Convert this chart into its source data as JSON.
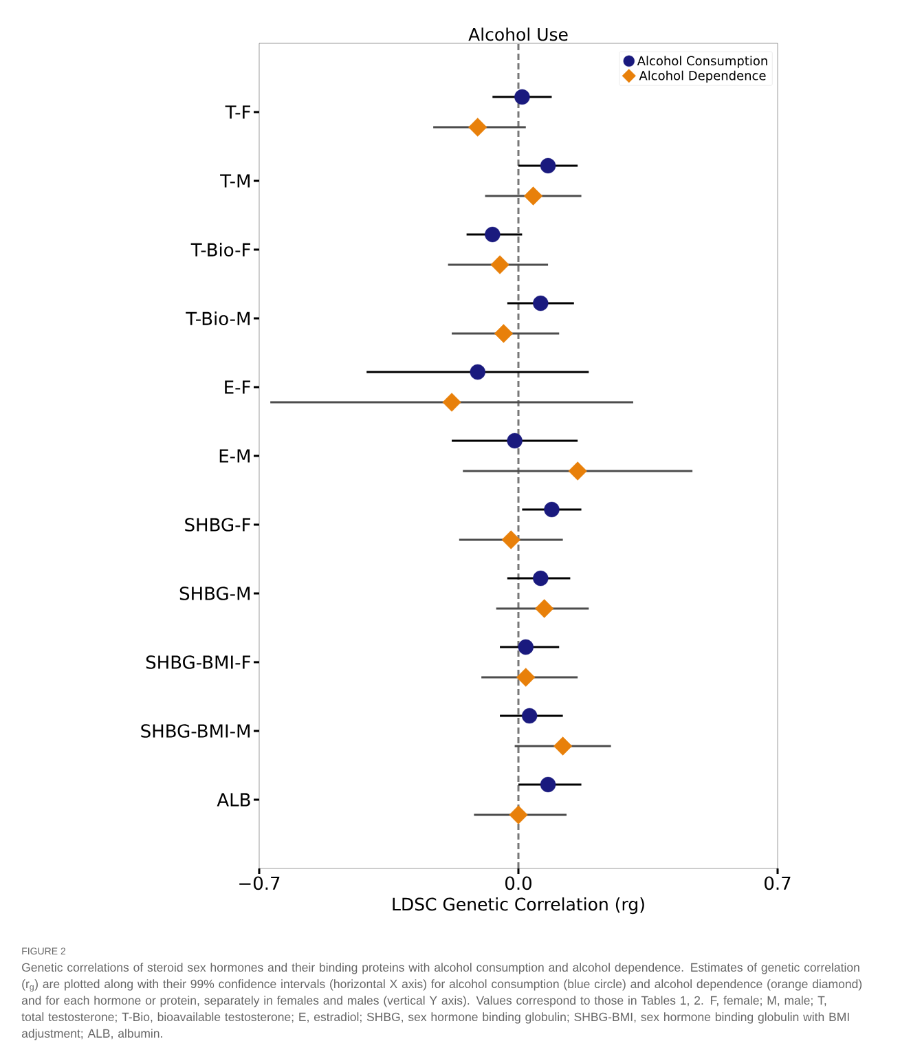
{
  "chart_data": {
    "type": "scatter",
    "title": "Alcohol Use",
    "xlabel": "LDSC Genetic Correlation (rg)",
    "categories": [
      "T-F",
      "T-M",
      "T-Bio-F",
      "T-Bio-M",
      "E-F",
      "E-M",
      "SHBG-F",
      "SHBG-M",
      "SHBG-BMI-F",
      "SHBG-BMI-M",
      "ALB"
    ],
    "orientation": "horizontal",
    "xlim": [
      -0.7,
      0.7
    ],
    "xticks": [
      {
        "value": -0.7,
        "label": "−0.7"
      },
      {
        "value": 0.0,
        "label": "0.0"
      },
      {
        "value": 0.7,
        "label": "0.7"
      }
    ],
    "series": [
      {
        "name": "Alcohol Consumption",
        "color": "#1a1a7e",
        "marker": "circle",
        "values": [
          0.01,
          0.08,
          -0.07,
          0.06,
          -0.11,
          -0.01,
          0.09,
          0.06,
          0.02,
          0.03,
          0.08
        ],
        "errors": [
          [
            -0.07,
            0.09
          ],
          [
            0.0,
            0.16
          ],
          [
            -0.14,
            0.01
          ],
          [
            -0.03,
            0.15
          ],
          [
            -0.41,
            0.19
          ],
          [
            -0.18,
            0.16
          ],
          [
            0.01,
            0.17
          ],
          [
            -0.03,
            0.14
          ],
          [
            -0.05,
            0.11
          ],
          [
            -0.05,
            0.12
          ],
          [
            0.0,
            0.17
          ]
        ]
      },
      {
        "name": "Alcohol Dependence",
        "color": "#e8800a",
        "marker": "diamond",
        "values": [
          -0.11,
          0.04,
          -0.05,
          -0.04,
          -0.18,
          0.16,
          -0.02,
          0.07,
          0.02,
          0.12,
          0.0
        ],
        "errors": [
          [
            -0.23,
            0.02
          ],
          [
            -0.09,
            0.17
          ],
          [
            -0.19,
            0.08
          ],
          [
            -0.18,
            0.11
          ],
          [
            -0.67,
            0.31
          ],
          [
            -0.15,
            0.47
          ],
          [
            -0.16,
            0.12
          ],
          [
            -0.06,
            0.19
          ],
          [
            -0.1,
            0.16
          ],
          [
            -0.01,
            0.25
          ],
          [
            -0.12,
            0.13
          ]
        ]
      }
    ],
    "ref_lines": [
      {
        "axis": "x",
        "value": 0,
        "color": "#777777",
        "line_style": "dashed"
      }
    ],
    "legend": "top right",
    "annotations": [
      "FIGURE 2",
      "Genetic correlations of steroid sex hormones and their binding proteins with alcohol consumption and alcohol dependence. Estimates of genetic correlation (r$_{g}$) are plotted along with their 99% confidence intervals (horizontal X axis) for alcohol consumption (blue circle) and alcohol dependence (orange diamond) and for each hormone or protein, separately in females and males (vertical Y axis). Values correspond to those in Tables 1, 2. F, female; M, male; T, total testosterone; T-Bio, bioavailable testosterone; E, estradiol; SHBG, sex hormone binding globulin; SHBG-BMI, sex hormone binding globulin with BMI adjustment; ALB, albumin."
    ]
  }
}
